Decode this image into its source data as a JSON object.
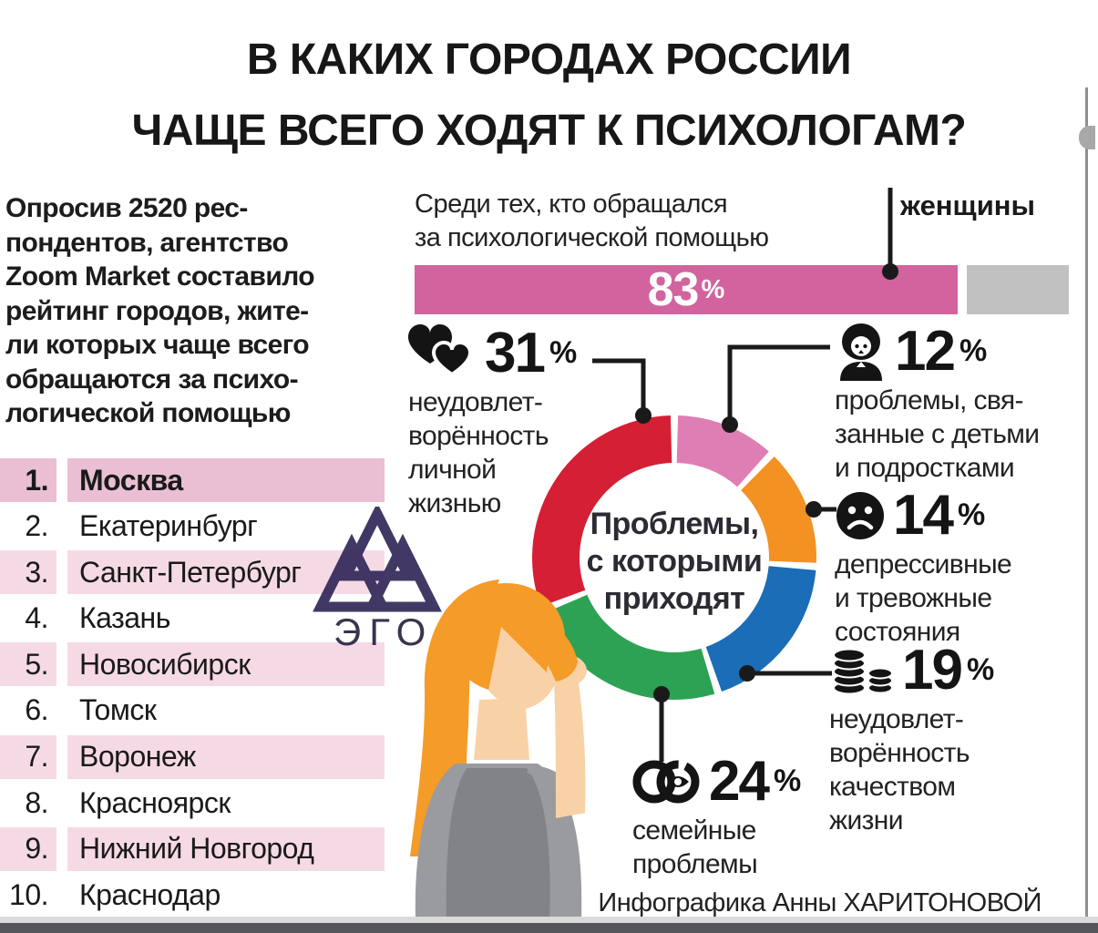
{
  "header": {
    "title_line1": "В КАКИХ ГОРОДАХ РОССИИ",
    "title_line2": "ЧАЩЕ ВСЕГО ХОДЯТ К ПСИХОЛОГАМ?"
  },
  "intro": {
    "lines": [
      "Опросив 2520 рес-",
      "пондентов, агентство",
      "Zoom Market составило",
      "рейтинг городов, жите-",
      "ли которых чаще всего",
      "обращаются за психо-",
      "логической помощью"
    ]
  },
  "ranking": {
    "items": [
      {
        "rank": "1.",
        "city": "Москва"
      },
      {
        "rank": "2.",
        "city": "Екатеринбург"
      },
      {
        "rank": "3.",
        "city": "Санкт-Петербург"
      },
      {
        "rank": "4.",
        "city": "Казань"
      },
      {
        "rank": "5.",
        "city": "Новосибирск"
      },
      {
        "rank": "6.",
        "city": "Томск"
      },
      {
        "rank": "7.",
        "city": "Воронеж"
      },
      {
        "rank": "8.",
        "city": "Красноярск"
      },
      {
        "rank": "9.",
        "city": "Нижний Новгород"
      },
      {
        "rank": "10.",
        "city": "Краснодар"
      }
    ]
  },
  "bar_section": {
    "caption_line1": "Среди тех, кто обращался",
    "caption_line2": "за психологической помощью",
    "value": "83",
    "unit": "%",
    "annotation": "женщины"
  },
  "donut_center": {
    "line1": "Проблемы,",
    "line2": "с которыми",
    "line3": "приходят"
  },
  "labels": [
    {
      "value": "31",
      "unit": "%",
      "icon": "hearts-icon",
      "lines": [
        "неудовлет-",
        "ворённость",
        "личной",
        "жизнью"
      ]
    },
    {
      "value": "12",
      "unit": "%",
      "icon": "mother-icon",
      "lines": [
        "проблемы, свя-",
        "занные с детьми",
        "и подростками"
      ]
    },
    {
      "value": "14",
      "unit": "%",
      "icon": "sad-face-icon",
      "lines": [
        "депрессивные",
        "и тревожные",
        "состояния"
      ]
    },
    {
      "value": "19",
      "unit": "%",
      "icon": "coins-icon",
      "lines": [
        "неудовлет-",
        "ворённость",
        "качеством",
        "жизни"
      ]
    },
    {
      "value": "24",
      "unit": "%",
      "icon": "wedding-rings-icon",
      "lines": [
        "семейные",
        "проблемы"
      ]
    }
  ],
  "watermark": {
    "text": "ЭГО"
  },
  "credit": "Инфографика Анны ХАРИТОНОВОЙ",
  "chart_data": [
    {
      "type": "bar",
      "title": "Среди тех, кто обращался за психологической помощью",
      "categories": [
        "женщины"
      ],
      "values": [
        83
      ],
      "unit": "%",
      "xlim": [
        0,
        100
      ],
      "colors": {
        "fill": "#d2639e",
        "remainder": "#c1c1c2"
      },
      "data_label": "83%"
    },
    {
      "type": "pie",
      "donut": true,
      "title": "Проблемы, с которыми приходят",
      "start": "top",
      "direction": "clockwise",
      "segments": [
        {
          "label": "проблемы, связанные с детьми и подростками",
          "value": 12,
          "color": "#df7eb4"
        },
        {
          "label": "депрессивные и тревожные состояния",
          "value": 14,
          "color": "#f39123"
        },
        {
          "label": "неудовлетворённость качеством жизни",
          "value": 19,
          "color": "#1a6db6"
        },
        {
          "label": "семейные проблемы",
          "value": 24,
          "color": "#2ea254"
        },
        {
          "label": "неудовлетворённость личной жизнью",
          "value": 31,
          "color": "#d51f35"
        }
      ]
    }
  ]
}
